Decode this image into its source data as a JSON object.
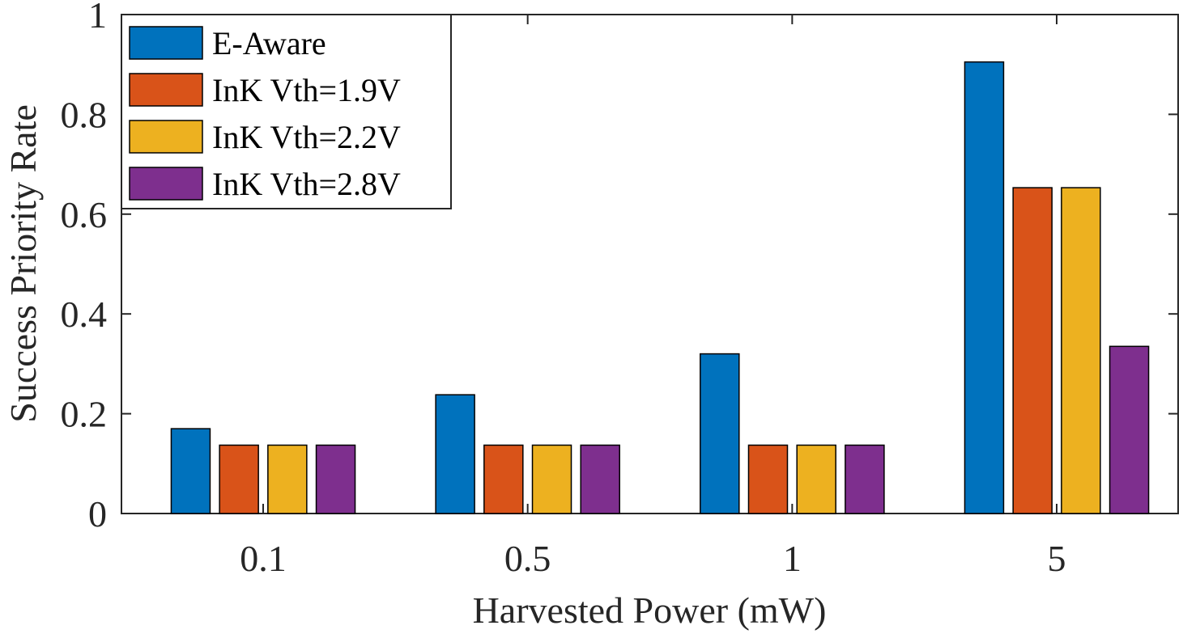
{
  "chart_data": {
    "type": "bar",
    "title": "",
    "xlabel": "Harvested Power (mW)",
    "ylabel": "Success Priority Rate",
    "categories": [
      "0.1",
      "0.5",
      "1",
      "5"
    ],
    "ylim": [
      0,
      1
    ],
    "yticks": [
      "0",
      "0.2",
      "0.4",
      "0.6",
      "0.8",
      "1"
    ],
    "ytick_values": [
      0,
      0.2,
      0.4,
      0.6,
      0.8,
      1
    ],
    "grid": false,
    "legend_position": "top-left",
    "series": [
      {
        "name": "E-Aware",
        "color": "#0072BD",
        "values": [
          0.17,
          0.238,
          0.32,
          0.905
        ]
      },
      {
        "name": "InK Vth=1.9V",
        "color": "#D95319",
        "values": [
          0.137,
          0.137,
          0.137,
          0.653
        ]
      },
      {
        "name": "InK Vth=2.2V",
        "color": "#EDB120",
        "values": [
          0.137,
          0.137,
          0.137,
          0.653
        ]
      },
      {
        "name": "InK Vth=2.8V",
        "color": "#7E2F8E",
        "values": [
          0.137,
          0.137,
          0.137,
          0.335
        ]
      }
    ]
  }
}
